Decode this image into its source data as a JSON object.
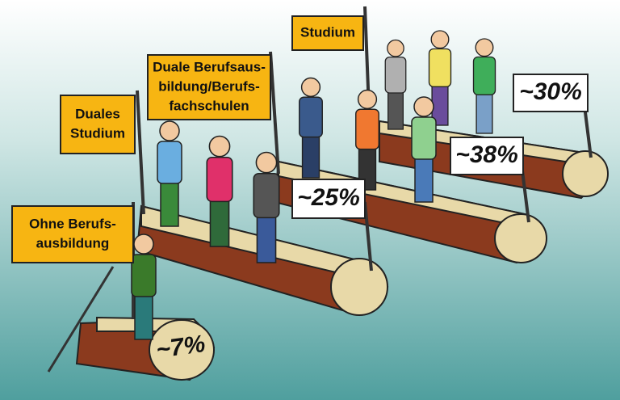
{
  "flags": [
    {
      "lines": [
        "Ohne Berufs-",
        "ausbildung"
      ]
    },
    {
      "lines": [
        "Duales",
        "Studium"
      ]
    },
    {
      "lines": [
        "Duale Berufsaus-",
        "bildung/Berufs-",
        "fachschulen"
      ]
    },
    {
      "lines": [
        "Studium"
      ]
    }
  ],
  "signs": [
    "~7%",
    "~25%",
    "~38%",
    "~30%"
  ]
}
